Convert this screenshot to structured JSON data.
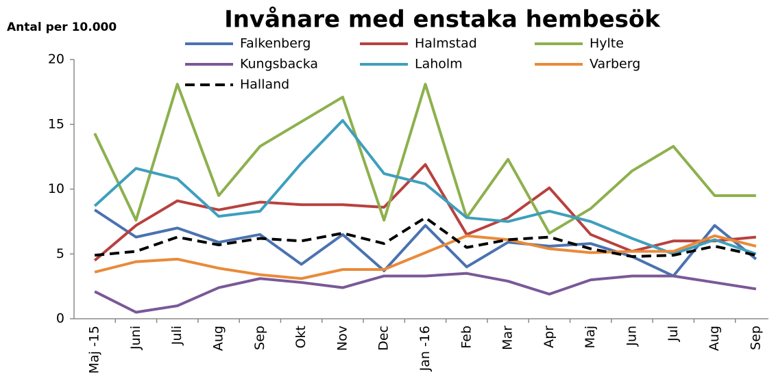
{
  "chart_data": {
    "type": "line",
    "title": "Invånare med enstaka hembesök",
    "y_axis_label": "Antal per 10.000",
    "categories": [
      "Maj -15",
      "Juni",
      "Juli",
      "Aug",
      "Sep",
      "Okt",
      "Nov",
      "Dec",
      "Jan -16",
      "Feb",
      "Mar",
      "Apr",
      "Maj",
      "Jun",
      "Jul",
      "Aug",
      "Sep"
    ],
    "ylim": [
      0,
      20
    ],
    "yticks": [
      0,
      5,
      10,
      15,
      20
    ],
    "grid": false,
    "legend": "top",
    "series": [
      {
        "name": "Falkenberg",
        "color": "#4a72b0",
        "values": [
          8.4,
          6.3,
          7.0,
          5.9,
          6.5,
          4.2,
          6.5,
          3.7,
          7.2,
          4.0,
          5.9,
          5.6,
          5.8,
          4.8,
          3.3,
          7.2,
          4.6
        ]
      },
      {
        "name": "Halmstad",
        "color": "#b8413e",
        "values": [
          4.5,
          7.2,
          9.1,
          8.4,
          9.0,
          8.8,
          8.8,
          8.6,
          11.9,
          6.5,
          7.8,
          10.1,
          6.5,
          5.2,
          6.0,
          6.0,
          6.3
        ]
      },
      {
        "name": "Hylte",
        "color": "#8db04d",
        "values": [
          14.3,
          7.6,
          18.1,
          9.5,
          13.3,
          15.2,
          17.1,
          7.6,
          18.1,
          7.8,
          12.3,
          6.6,
          8.5,
          11.4,
          13.3,
          9.5,
          9.5
        ]
      },
      {
        "name": "Kungsbacka",
        "color": "#7a5898",
        "values": [
          2.1,
          0.5,
          1.0,
          2.4,
          3.1,
          2.8,
          2.4,
          3.3,
          3.3,
          3.5,
          2.9,
          1.9,
          3.0,
          3.3,
          3.3,
          2.8,
          2.3
        ]
      },
      {
        "name": "Laholm",
        "color": "#3e9fbd",
        "values": [
          8.7,
          11.6,
          10.8,
          7.9,
          8.3,
          12.0,
          15.3,
          11.2,
          10.4,
          7.8,
          7.5,
          8.3,
          7.5,
          6.2,
          5.0,
          6.1,
          5.0
        ]
      },
      {
        "name": "Varberg",
        "color": "#e98a3a",
        "values": [
          3.6,
          4.4,
          4.6,
          3.9,
          3.4,
          3.1,
          3.8,
          3.8,
          5.1,
          6.4,
          6.1,
          5.4,
          5.1,
          5.2,
          5.2,
          6.4,
          5.6
        ]
      },
      {
        "name": "Halland",
        "color": "#000000",
        "dashed": true,
        "values": [
          4.9,
          5.2,
          6.3,
          5.7,
          6.2,
          6.0,
          6.6,
          5.8,
          7.8,
          5.5,
          6.1,
          6.3,
          5.4,
          4.8,
          4.9,
          5.6,
          4.9
        ]
      }
    ]
  }
}
